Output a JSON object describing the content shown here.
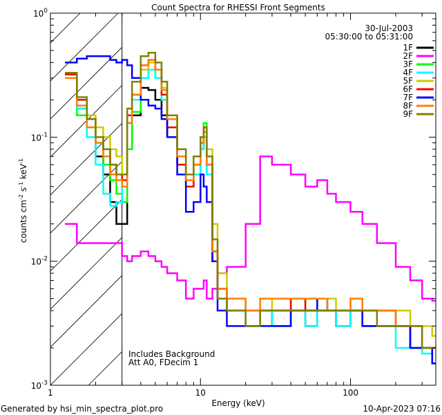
{
  "chart_data": {
    "type": "line",
    "title": "Count Spectra for RHESSI Front Segments",
    "xlabel": "Energy (keV)",
    "ylabel": "counts cm-2 s-1 keV-1",
    "ylabel_parts": {
      "base": "counts cm",
      "e1": "-2",
      "s": " s",
      "e2": "-1",
      "k": " keV",
      "e3": "-1"
    },
    "xscale": "log",
    "yscale": "log",
    "xlim": [
      1,
      370
    ],
    "ylim": [
      0.001,
      1
    ],
    "x_tick_labels": [
      "1",
      "10",
      "100"
    ],
    "y_tick_labels": [
      {
        "base": "10",
        "exp": "0"
      },
      {
        "base": "10",
        "exp": "-1"
      },
      {
        "base": "10",
        "exp": "-2"
      },
      {
        "base": "10",
        "exp": "-3"
      }
    ],
    "date": "30-Jul-2003",
    "time_range": "05:30:00 to 05:31:00",
    "annotations": [
      "Includes Background",
      "Att A0, FDecim 1"
    ],
    "hatched_region_keV": [
      1,
      3
    ],
    "legend_position": "top-right",
    "footer_left": "Generated by hsi_min_spectra_plot.pro",
    "footer_right": "10-Apr-2023 07:16",
    "energy_edges": [
      1.25,
      1.5,
      1.75,
      2,
      2.25,
      2.5,
      2.75,
      3,
      3.25,
      3.5,
      4,
      4.5,
      5,
      5.5,
      6,
      7,
      8,
      9,
      10,
      10.5,
      11,
      12,
      13,
      15,
      20,
      25,
      30,
      40,
      50,
      60,
      70,
      80,
      100,
      120,
      150,
      200,
      250,
      300,
      350,
      370
    ],
    "series": [
      {
        "name": "1F",
        "color": "#000000",
        "values": [
          0.32,
          0.17,
          0.1,
          0.07,
          0.05,
          0.03,
          0.02,
          0.02,
          0.08,
          0.15,
          0.25,
          0.24,
          0.2,
          0.15,
          0.1,
          0.06,
          0.04,
          0.05,
          0.08,
          0.1,
          0.05,
          0.01,
          0.005,
          0.004,
          0.003,
          0.004,
          0.003,
          0.004,
          0.003,
          0.004,
          0.004,
          0.003,
          0.004,
          0.003,
          0.003,
          0.003,
          0.002,
          0.002,
          0.0015
        ]
      },
      {
        "name": "2F",
        "color": "#ff00ff",
        "values": [
          0.02,
          0.014,
          0.014,
          0.014,
          0.014,
          0.014,
          0.014,
          0.011,
          0.01,
          0.011,
          0.012,
          0.011,
          0.01,
          0.009,
          0.008,
          0.007,
          0.005,
          0.006,
          0.006,
          0.007,
          0.005,
          0.006,
          0.008,
          0.009,
          0.02,
          0.07,
          0.06,
          0.05,
          0.04,
          0.045,
          0.035,
          0.03,
          0.025,
          0.02,
          0.014,
          0.009,
          0.007,
          0.005,
          0.0048
        ]
      },
      {
        "name": "3F",
        "color": "#00ff00",
        "values": [
          0.3,
          0.15,
          0.12,
          0.09,
          0.06,
          0.045,
          0.035,
          0.03,
          0.08,
          0.16,
          0.3,
          0.35,
          0.3,
          0.2,
          0.12,
          0.06,
          0.04,
          0.06,
          0.1,
          0.13,
          0.06,
          0.012,
          0.006,
          0.005,
          0.004,
          0.004,
          0.004,
          0.005,
          0.004,
          0.005,
          0.004,
          0.004,
          0.004,
          0.004,
          0.004,
          0.003,
          0.003,
          0.002,
          0.002
        ]
      },
      {
        "name": "4F",
        "color": "#00ffff",
        "values": [
          0.3,
          0.17,
          0.1,
          0.06,
          0.035,
          0.028,
          0.03,
          0.04,
          0.13,
          0.2,
          0.3,
          0.35,
          0.3,
          0.2,
          0.12,
          0.06,
          0.04,
          0.05,
          0.08,
          0.1,
          0.05,
          0.012,
          0.006,
          0.004,
          0.003,
          0.004,
          0.003,
          0.004,
          0.003,
          0.004,
          0.004,
          0.003,
          0.004,
          0.003,
          0.003,
          0.002,
          0.002,
          0.0018,
          0.0015
        ]
      },
      {
        "name": "5F",
        "color": "#cccc00",
        "values": [
          0.3,
          0.2,
          0.15,
          0.12,
          0.1,
          0.08,
          0.07,
          0.05,
          0.15,
          0.22,
          0.35,
          0.4,
          0.35,
          0.25,
          0.15,
          0.08,
          0.05,
          0.07,
          0.1,
          0.12,
          0.08,
          0.02,
          0.008,
          0.005,
          0.004,
          0.005,
          0.004,
          0.005,
          0.004,
          0.005,
          0.005,
          0.004,
          0.005,
          0.004,
          0.004,
          0.004,
          0.003,
          0.003,
          0.0025
        ]
      },
      {
        "name": "6F",
        "color": "#ff0000",
        "values": [
          0.32,
          0.2,
          0.14,
          0.1,
          0.08,
          0.06,
          0.05,
          0.045,
          0.15,
          0.22,
          0.38,
          0.42,
          0.35,
          0.22,
          0.12,
          0.06,
          0.04,
          0.06,
          0.09,
          0.12,
          0.06,
          0.012,
          0.006,
          0.005,
          0.004,
          0.004,
          0.004,
          0.005,
          0.004,
          0.004,
          0.004,
          0.004,
          0.004,
          0.004,
          0.004,
          0.003,
          0.003,
          0.002,
          0.002
        ]
      },
      {
        "name": "7F",
        "color": "#0000ff",
        "values": [
          0.4,
          0.43,
          0.45,
          0.45,
          0.45,
          0.42,
          0.4,
          0.42,
          0.38,
          0.3,
          0.2,
          0.18,
          0.17,
          0.14,
          0.1,
          0.05,
          0.025,
          0.03,
          0.05,
          0.04,
          0.03,
          0.01,
          0.004,
          0.003,
          0.003,
          0.003,
          0.003,
          0.004,
          0.004,
          0.005,
          0.004,
          0.004,
          0.004,
          0.003,
          0.003,
          0.003,
          0.002,
          0.002,
          0.0015
        ]
      },
      {
        "name": "8F",
        "color": "#ff8000",
        "values": [
          0.3,
          0.18,
          0.12,
          0.09,
          0.07,
          0.05,
          0.045,
          0.04,
          0.13,
          0.22,
          0.38,
          0.42,
          0.35,
          0.24,
          0.14,
          0.07,
          0.045,
          0.06,
          0.09,
          0.11,
          0.06,
          0.012,
          0.006,
          0.005,
          0.004,
          0.005,
          0.005,
          0.005,
          0.005,
          0.005,
          0.004,
          0.004,
          0.005,
          0.004,
          0.004,
          0.003,
          0.003,
          0.002,
          0.002
        ]
      },
      {
        "name": "9F",
        "color": "#808000",
        "values": [
          0.33,
          0.21,
          0.14,
          0.1,
          0.08,
          0.06,
          0.05,
          0.05,
          0.17,
          0.28,
          0.45,
          0.48,
          0.4,
          0.28,
          0.15,
          0.08,
          0.05,
          0.07,
          0.1,
          0.12,
          0.07,
          0.015,
          0.005,
          0.004,
          0.003,
          0.004,
          0.004,
          0.004,
          0.004,
          0.004,
          0.004,
          0.004,
          0.004,
          0.004,
          0.003,
          0.003,
          0.003,
          0.002,
          0.002
        ]
      }
    ]
  }
}
